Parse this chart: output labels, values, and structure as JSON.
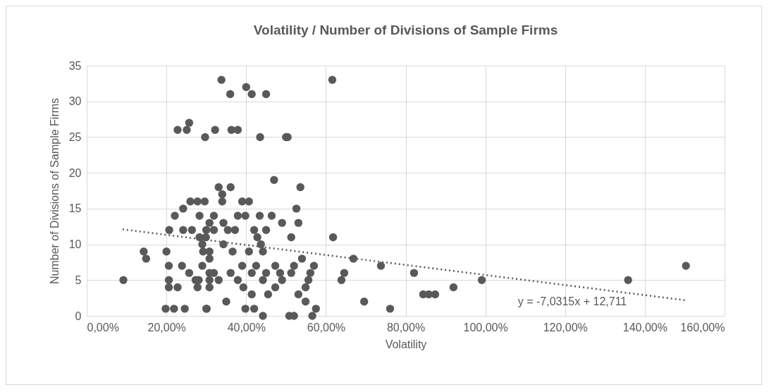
{
  "chart_data": {
    "type": "scatter",
    "title": "Volatility / Number of Divisions of Sample Firms",
    "xlabel": "Volatility",
    "ylabel": "Number of Divisions of Sample Firms",
    "xlim": [
      0,
      160
    ],
    "ylim": [
      0,
      35
    ],
    "xticks": [
      {
        "value": 0,
        "label": "0,00%"
      },
      {
        "value": 20,
        "label": "20,00%"
      },
      {
        "value": 40,
        "label": "40,00%"
      },
      {
        "value": 60,
        "label": "60,00%"
      },
      {
        "value": 80,
        "label": "80,00%"
      },
      {
        "value": 100,
        "label": "100,00%"
      },
      {
        "value": 120,
        "label": "120,00%"
      },
      {
        "value": 140,
        "label": "140,00%"
      },
      {
        "value": 160,
        "label": "160,00%"
      }
    ],
    "yticks": [
      0,
      5,
      10,
      15,
      20,
      25,
      30,
      35
    ],
    "grid": true,
    "marker": "circle",
    "annotations": [
      "y = -7,0315x + 12,711"
    ],
    "series": [
      {
        "color": "#595959",
        "x": [
          9.2,
          14.3,
          14.9,
          20,
          20.6,
          20.6,
          20.6,
          22.8,
          23.9,
          25.7,
          27.8,
          19.8,
          21.9,
          24.6,
          30.1,
          22.8,
          25.1,
          25.7,
          29.7,
          20.7,
          22.1,
          24.2,
          26,
          27.8,
          29.6,
          24.2,
          26.4,
          28.3,
          28.3,
          29,
          29.2,
          36,
          41.4,
          45,
          32.2,
          36.3,
          37.9,
          43.5,
          50,
          50.4,
          47,
          33.1,
          36.1,
          53.6,
          34,
          34,
          39,
          40.7,
          52.6,
          31.9,
          37.9,
          39.8,
          43.4,
          46.4,
          53.1,
          49,
          34.3,
          45,
          30,
          31.9,
          35.4,
          37.2,
          42,
          42.8,
          51.3,
          34.3,
          43.7,
          36.6,
          40.7,
          44.2,
          30.8,
          54,
          39,
          42.5,
          47.3,
          52,
          31.9,
          36.1,
          41.4,
          45,
          48.5,
          51.3,
          33.1,
          37.9,
          44.2,
          49,
          55.6,
          30.8,
          39.3,
          47.3,
          41.4,
          45.5,
          53.1,
          35,
          54.9,
          30,
          39.8,
          42,
          44.2,
          50.8,
          52,
          61.8,
          66.9,
          73.8,
          64.6,
          63.9,
          69.6,
          76.1,
          57,
          56.1,
          54.9,
          57.5,
          56.6,
          82.1,
          84.4,
          85.8,
          87.4,
          92,
          99.1,
          135.8,
          150.3,
          33.8,
          40,
          61.6,
          30.8,
          29.9,
          30.8,
          30.8,
          30.8,
          29,
          27.3,
          28.1
        ],
        "values": [
          5,
          9,
          8,
          9,
          7,
          5,
          4,
          4,
          7,
          6,
          4,
          1,
          1,
          1,
          1,
          26,
          26,
          27,
          25,
          12,
          14,
          15,
          16,
          16,
          16,
          12,
          12,
          14,
          11,
          10,
          9,
          31,
          31,
          31,
          26,
          26,
          26,
          25,
          25,
          25,
          19,
          18,
          18,
          18,
          17,
          16,
          16,
          16,
          15,
          14,
          14,
          14,
          14,
          14,
          13,
          13,
          13,
          12,
          12,
          12,
          12,
          12,
          12,
          11,
          11,
          10,
          10,
          9,
          9,
          9,
          8,
          8,
          7,
          7,
          7,
          7,
          6,
          6,
          6,
          6,
          6,
          6,
          5,
          5,
          5,
          5,
          5,
          4,
          4,
          4,
          3,
          3,
          3,
          2,
          2,
          1,
          1,
          1,
          0,
          0,
          0,
          11,
          8,
          7,
          6,
          5,
          2,
          1,
          7,
          6,
          4,
          1,
          0,
          6,
          3,
          3,
          3,
          4,
          5,
          5,
          7,
          33,
          32,
          33,
          13,
          11,
          9,
          6,
          5,
          7,
          5,
          5
        ]
      },
      {
        "type": "line",
        "color": "#595959",
        "line_style": "dotted",
        "marker": "none",
        "x": [
          9,
          150
        ],
        "values": [
          12.1,
          2.2
        ]
      }
    ]
  }
}
